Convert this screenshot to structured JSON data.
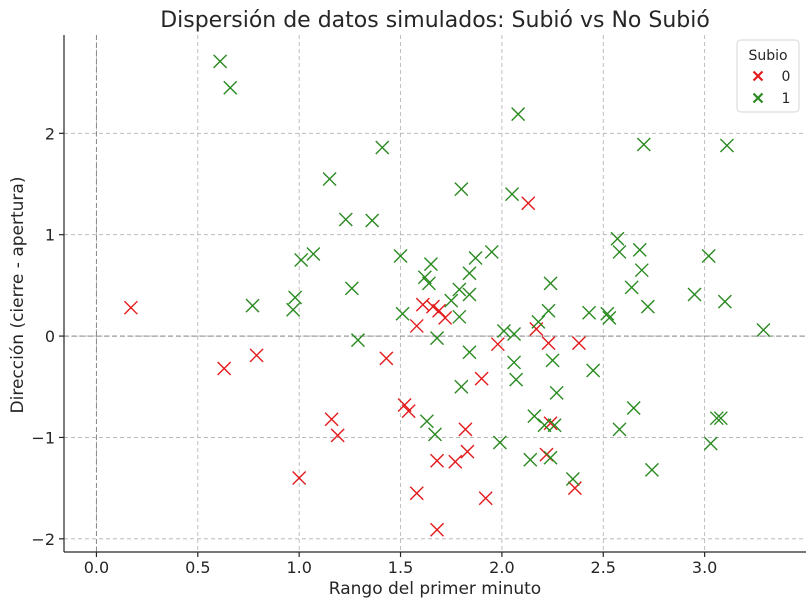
{
  "chart_data": {
    "type": "scatter",
    "title": "Dispersión de datos simulados: Subió vs No Subió",
    "xlabel": "Rango del primer minuto",
    "ylabel": "Dirección (cierre - apertura)",
    "xlim": [
      -0.16,
      3.5
    ],
    "ylim": [
      -2.13,
      2.97
    ],
    "xticks": [
      0.0,
      0.5,
      1.0,
      1.5,
      2.0,
      2.5,
      3.0
    ],
    "xtick_labels": [
      "0.0",
      "0.5",
      "1.0",
      "1.5",
      "2.0",
      "2.5",
      "3.0"
    ],
    "yticks": [
      -2,
      -1,
      0,
      1,
      2
    ],
    "ytick_labels": [
      "−2",
      "−1",
      "0",
      "1",
      "2"
    ],
    "grid": true,
    "reference_lines": {
      "x": 0,
      "y": 0
    },
    "legend": {
      "title": "Subio",
      "position": "top-right",
      "entries": [
        {
          "label": "0",
          "color": "#e31a1c"
        },
        {
          "label": "1",
          "color": "#2a8a20"
        }
      ]
    },
    "series": [
      {
        "name": "0",
        "marker": "x",
        "color": "#e31a1c",
        "points": [
          [
            0.17,
            0.28
          ],
          [
            0.63,
            -0.32
          ],
          [
            0.79,
            -0.19
          ],
          [
            1.0,
            -1.4
          ],
          [
            1.16,
            -0.82
          ],
          [
            1.19,
            -0.98
          ],
          [
            1.43,
            -0.22
          ],
          [
            1.52,
            -0.68
          ],
          [
            1.54,
            -0.74
          ],
          [
            1.58,
            0.1
          ],
          [
            1.58,
            -1.55
          ],
          [
            1.61,
            0.31
          ],
          [
            1.66,
            0.29
          ],
          [
            1.68,
            -1.23
          ],
          [
            1.68,
            -1.91
          ],
          [
            1.69,
            0.25
          ],
          [
            1.72,
            0.18
          ],
          [
            1.77,
            -1.24
          ],
          [
            1.82,
            -0.92
          ],
          [
            1.83,
            -1.14
          ],
          [
            1.9,
            -0.42
          ],
          [
            1.92,
            -1.6
          ],
          [
            1.98,
            -0.08
          ],
          [
            2.13,
            1.31
          ],
          [
            2.17,
            0.07
          ],
          [
            2.22,
            -1.17
          ],
          [
            2.23,
            -0.07
          ],
          [
            2.24,
            -0.86
          ],
          [
            2.36,
            -1.5
          ],
          [
            2.38,
            -0.07
          ]
        ]
      },
      {
        "name": "1",
        "marker": "x",
        "color": "#2a8a20",
        "points": [
          [
            0.61,
            2.71
          ],
          [
            0.66,
            2.45
          ],
          [
            0.77,
            0.3
          ],
          [
            0.97,
            0.26
          ],
          [
            0.98,
            0.38
          ],
          [
            1.01,
            0.75
          ],
          [
            1.07,
            0.81
          ],
          [
            1.15,
            1.55
          ],
          [
            1.23,
            1.15
          ],
          [
            1.26,
            0.47
          ],
          [
            1.29,
            -0.04
          ],
          [
            1.36,
            1.14
          ],
          [
            1.41,
            1.86
          ],
          [
            1.5,
            0.79
          ],
          [
            1.51,
            0.22
          ],
          [
            1.62,
            0.58
          ],
          [
            1.63,
            -0.84
          ],
          [
            1.64,
            0.52
          ],
          [
            1.65,
            0.71
          ],
          [
            1.67,
            -0.97
          ],
          [
            1.68,
            -0.02
          ],
          [
            1.75,
            0.35
          ],
          [
            1.79,
            0.46
          ],
          [
            1.79,
            0.19
          ],
          [
            1.8,
            1.45
          ],
          [
            1.8,
            -0.5
          ],
          [
            1.84,
            0.41
          ],
          [
            1.84,
            0.62
          ],
          [
            1.84,
            -0.16
          ],
          [
            1.87,
            0.77
          ],
          [
            1.95,
            0.83
          ],
          [
            1.99,
            -1.05
          ],
          [
            2.01,
            0.05
          ],
          [
            2.05,
            1.4
          ],
          [
            2.06,
            0.02
          ],
          [
            2.06,
            -0.26
          ],
          [
            2.07,
            -0.43
          ],
          [
            2.08,
            2.19
          ],
          [
            2.14,
            -1.22
          ],
          [
            2.16,
            -0.79
          ],
          [
            2.18,
            0.14
          ],
          [
            2.21,
            -0.88
          ],
          [
            2.23,
            0.25
          ],
          [
            2.24,
            0.52
          ],
          [
            2.24,
            -1.2
          ],
          [
            2.25,
            -0.24
          ],
          [
            2.26,
            -0.88
          ],
          [
            2.27,
            -0.56
          ],
          [
            2.35,
            -1.41
          ],
          [
            2.43,
            0.23
          ],
          [
            2.45,
            -0.34
          ],
          [
            2.52,
            0.22
          ],
          [
            2.53,
            0.18
          ],
          [
            2.57,
            0.96
          ],
          [
            2.58,
            0.83
          ],
          [
            2.58,
            -0.92
          ],
          [
            2.64,
            0.48
          ],
          [
            2.65,
            -0.71
          ],
          [
            2.68,
            0.85
          ],
          [
            2.69,
            0.65
          ],
          [
            2.7,
            1.89
          ],
          [
            2.72,
            0.29
          ],
          [
            2.74,
            -1.32
          ],
          [
            2.95,
            0.41
          ],
          [
            3.02,
            0.79
          ],
          [
            3.03,
            -1.06
          ],
          [
            3.06,
            -0.81
          ],
          [
            3.08,
            -0.81
          ],
          [
            3.1,
            0.34
          ],
          [
            3.11,
            1.88
          ],
          [
            3.29,
            0.06
          ]
        ]
      }
    ]
  }
}
